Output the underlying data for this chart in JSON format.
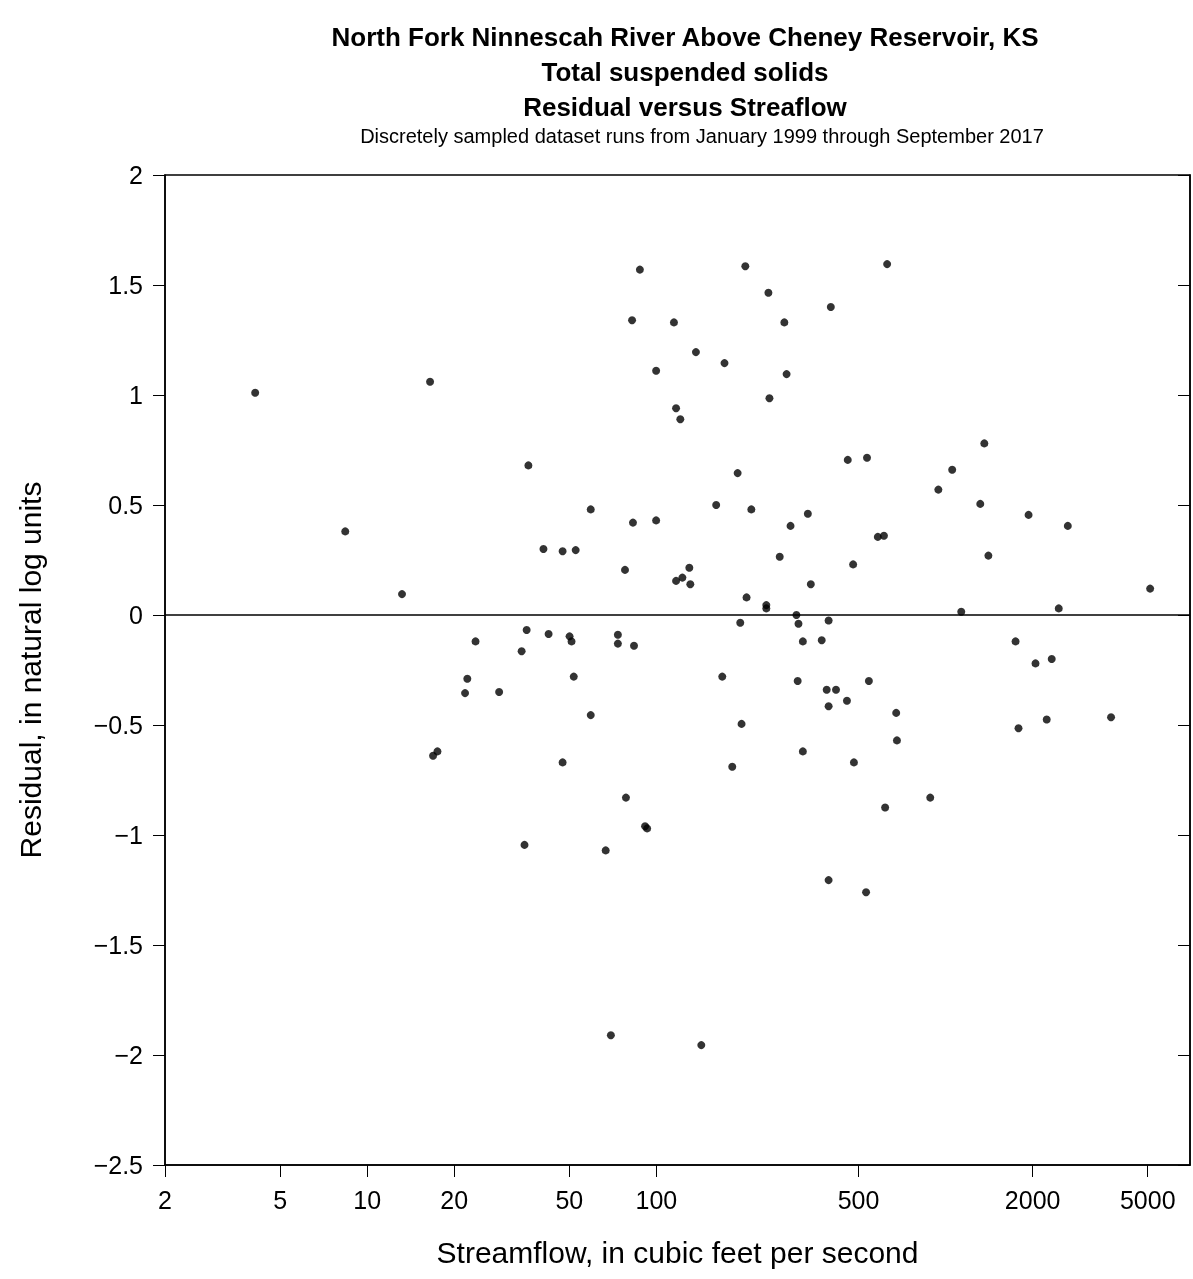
{
  "chart_data": {
    "type": "scatter",
    "title": "North Fork Ninnescah River Above Cheney Reservoir, KS\nTotal suspended solids\nResidual versus Streaflow",
    "subtitle": "Discretely sampled dataset runs from January 1999 through September 2017",
    "xlabel": "Streamflow, in cubic feet per second",
    "ylabel": "Residual, in natural log units",
    "log": "x",
    "marker": "circle",
    "color": "#000000",
    "xlim": [
      2,
      7000
    ],
    "xticks": [
      2,
      5,
      10,
      20,
      50,
      100,
      500,
      2000,
      5000
    ],
    "ylim": [
      -2.5,
      2
    ],
    "yticks": [
      {
        "value": -2.5,
        "label": "−2.5"
      },
      {
        "value": -2,
        "label": "−2"
      },
      {
        "value": -1.5,
        "label": "−1.5"
      },
      {
        "value": -1,
        "label": "−1"
      },
      {
        "value": -0.5,
        "label": "−0.5"
      },
      0,
      0.5,
      1,
      1.5,
      2
    ],
    "ref_lines": [
      {
        "axis": "y",
        "value": 0,
        "label": null,
        "color": "#000000"
      }
    ],
    "x": [
      4.1,
      8.4,
      13.2,
      16.5,
      16.9,
      17.5,
      21.8,
      22.2,
      23.7,
      28.6,
      34.2,
      35.6,
      36.1,
      35.0,
      40.7,
      42.4,
      47.4,
      47.4,
      50.1,
      50.9,
      52.6,
      51.8,
      59.3,
      59.3,
      66.8,
      69.6,
      73.6,
      73.6,
      77.9,
      78.5,
      82.4,
      83.0,
      83.7,
      87.7,
      91.4,
      92.9,
      99.8,
      99.8,
      115,
      117,
      121,
      117,
      123,
      130,
      131,
      137,
      143,
      161,
      169,
      172,
      183,
      191,
      195,
      197,
      203,
      205,
      213,
      240,
      240,
      244,
      246,
      267,
      277,
      282,
      291,
      305,
      310,
      308,
      321,
      321,
      334,
      342,
      373,
      388,
      394,
      394,
      401,
      394,
      418,
      456,
      459,
      479,
      482,
      531,
      535,
      543,
      583,
      612,
      618,
      628,
      675,
      679,
      885,
      944,
      1054,
      1133,
      1318,
      1361,
      1406,
      1746,
      1787,
      1936,
      2046,
      2237,
      2328,
      2462,
      2646,
      3733,
      5097
    ],
    "values": [
      1.01,
      0.38,
      0.095,
      1.06,
      -0.64,
      -0.62,
      -0.355,
      -0.29,
      -0.12,
      -0.35,
      -0.165,
      -0.068,
      0.68,
      -1.045,
      0.3,
      -0.086,
      0.29,
      -0.67,
      -0.097,
      -0.12,
      0.295,
      -0.28,
      0.48,
      -0.455,
      -1.07,
      -1.91,
      -0.09,
      -0.13,
      0.205,
      -0.83,
      1.34,
      0.42,
      -0.14,
      1.57,
      -0.96,
      -0.97,
      1.11,
      0.43,
      1.33,
      0.94,
      0.89,
      0.155,
      0.17,
      0.215,
      0.14,
      1.195,
      -1.955,
      0.5,
      -0.28,
      1.145,
      -0.69,
      0.645,
      -0.035,
      -0.495,
      1.585,
      0.08,
      0.48,
      0.045,
      0.03,
      1.465,
      0.985,
      0.265,
      1.33,
      1.095,
      0.405,
      0.0,
      -0.04,
      -0.3,
      -0.12,
      -0.62,
      0.46,
      0.14,
      -0.115,
      -0.34,
      -0.025,
      -0.415,
      1.4,
      -1.205,
      -0.34,
      -0.39,
      0.705,
      0.23,
      -0.67,
      -1.26,
      0.715,
      -0.3,
      0.355,
      0.36,
      -0.875,
      1.595,
      -0.445,
      -0.57,
      -0.83,
      0.57,
      0.66,
      0.015,
      0.505,
      0.78,
      0.27,
      -0.12,
      -0.515,
      0.455,
      -0.22,
      -0.475,
      -0.2,
      0.03,
      0.405,
      -0.465,
      0.12
    ]
  }
}
